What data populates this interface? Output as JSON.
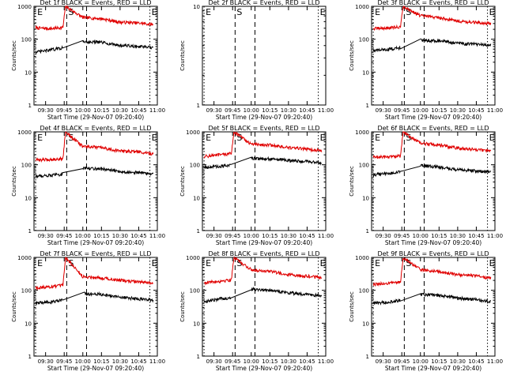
{
  "figure": {
    "shared": {
      "ylabel": "Counts/sec",
      "xlabel": "Start Time (29-Nov-07 09:20:40)",
      "x_tick_labels": [
        "09:30",
        "09:45",
        "10:00",
        "10:15",
        "10:30",
        "10:45",
        "11:00"
      ],
      "y_tick_labels": [
        "1",
        "10",
        "100",
        "1000"
      ],
      "marker_labels": {
        "E": "E",
        "S": "S"
      }
    },
    "colors": {
      "events": "#000000",
      "lld": "#e00000",
      "axes": "#000000",
      "background": "#ffffff"
    }
  },
  "chart_data": [
    {
      "type": "line",
      "title": "Det 1f BLACK = Events, RED = LLD",
      "x_range": [
        "09:20:40",
        "11:00"
      ],
      "y_scale": "log",
      "ylim": [
        1,
        1000
      ],
      "markers": [
        {
          "label": "E",
          "x": "09:22"
        },
        {
          "label": "S",
          "x": "09:47"
        },
        {
          "label": "E",
          "x": "10:54"
        }
      ],
      "x": [
        "09:22",
        "09:35",
        "09:44",
        "09:46",
        "10:00",
        "10:15",
        "10:30",
        "10:45",
        "10:57"
      ],
      "series": [
        {
          "name": "LLD",
          "color": "#e00000",
          "values": [
            220,
            210,
            230,
            1000,
            460,
            420,
            330,
            310,
            280
          ]
        },
        {
          "name": "Events",
          "color": "#000000",
          "values": [
            40,
            48,
            55,
            null,
            85,
            80,
            65,
            60,
            55
          ]
        }
      ]
    },
    {
      "type": "line",
      "title": "Det 2f BLACK = Events, RED = LLD",
      "x_range": [
        "09:20:40",
        "11:00"
      ],
      "y_scale": "log",
      "ylim": [
        1,
        10
      ],
      "markers": [
        {
          "label": "E",
          "x": "09:22"
        },
        {
          "label": "S",
          "x": "09:47"
        },
        {
          "label": "E",
          "x": "10:54"
        }
      ],
      "x": [],
      "series": []
    },
    {
      "type": "line",
      "title": "Det 3f BLACK = Events, RED = LLD",
      "x_range": [
        "09:20:40",
        "11:00"
      ],
      "y_scale": "log",
      "ylim": [
        1,
        1000
      ],
      "markers": [
        {
          "label": "E",
          "x": "09:22"
        },
        {
          "label": "S",
          "x": "09:47"
        },
        {
          "label": "E",
          "x": "10:54"
        }
      ],
      "x": [
        "09:22",
        "09:35",
        "09:44",
        "09:46",
        "10:00",
        "10:15",
        "10:30",
        "10:45",
        "10:57"
      ],
      "series": [
        {
          "name": "LLD",
          "color": "#e00000",
          "values": [
            210,
            220,
            240,
            1000,
            520,
            450,
            360,
            320,
            300
          ]
        },
        {
          "name": "Events",
          "color": "#000000",
          "values": [
            45,
            50,
            55,
            null,
            95,
            90,
            75,
            70,
            65
          ]
        }
      ]
    },
    {
      "type": "line",
      "title": "Det 4f BLACK = Events, RED = LLD",
      "x_range": [
        "09:20:40",
        "11:00"
      ],
      "y_scale": "log",
      "ylim": [
        1,
        1000
      ],
      "markers": [
        {
          "label": "E",
          "x": "09:22"
        },
        {
          "label": "S",
          "x": "09:47"
        },
        {
          "label": "E",
          "x": "10:54"
        }
      ],
      "x": [
        "09:22",
        "09:35",
        "09:44",
        "09:46",
        "10:00",
        "10:15",
        "10:30",
        "10:45",
        "10:57"
      ],
      "series": [
        {
          "name": "LLD",
          "color": "#e00000",
          "values": [
            140,
            145,
            155,
            1000,
            360,
            330,
            260,
            250,
            210
          ]
        },
        {
          "name": "Events",
          "color": "#000000",
          "values": [
            45,
            48,
            52,
            null,
            80,
            75,
            62,
            58,
            52
          ]
        }
      ]
    },
    {
      "type": "line",
      "title": "Det 5f BLACK = Events, RED = LLD",
      "x_range": [
        "09:20:40",
        "11:00"
      ],
      "y_scale": "log",
      "ylim": [
        1,
        1000
      ],
      "markers": [
        {
          "label": "E",
          "x": "09:22"
        },
        {
          "label": "S",
          "x": "09:47"
        },
        {
          "label": "E",
          "x": "10:54"
        }
      ],
      "x": [
        "09:22",
        "09:35",
        "09:44",
        "09:46",
        "10:00",
        "10:15",
        "10:30",
        "10:45",
        "10:57"
      ],
      "series": [
        {
          "name": "LLD",
          "color": "#e00000",
          "values": [
            180,
            200,
            220,
            1000,
            420,
            400,
            330,
            300,
            260
          ]
        },
        {
          "name": "Events",
          "color": "#000000",
          "values": [
            85,
            90,
            95,
            null,
            160,
            150,
            135,
            125,
            115
          ]
        }
      ]
    },
    {
      "type": "line",
      "title": "Det 6f BLACK = Events, RED = LLD",
      "x_range": [
        "09:20:40",
        "11:00"
      ],
      "y_scale": "log",
      "ylim": [
        1,
        1000
      ],
      "markers": [
        {
          "label": "E",
          "x": "09:22"
        },
        {
          "label": "S",
          "x": "09:47"
        },
        {
          "label": "E",
          "x": "10:54"
        }
      ],
      "x": [
        "09:22",
        "09:35",
        "09:44",
        "09:46",
        "10:00",
        "10:15",
        "10:30",
        "10:45",
        "10:57"
      ],
      "series": [
        {
          "name": "LLD",
          "color": "#e00000",
          "values": [
            170,
            175,
            185,
            1000,
            450,
            400,
            320,
            290,
            260
          ]
        },
        {
          "name": "Events",
          "color": "#000000",
          "values": [
            50,
            55,
            60,
            null,
            95,
            85,
            70,
            65,
            60
          ]
        }
      ]
    },
    {
      "type": "line",
      "title": "Det 7f BLACK = Events, RED = LLD",
      "x_range": [
        "09:20:40",
        "11:00"
      ],
      "y_scale": "log",
      "ylim": [
        1,
        1000
      ],
      "markers": [
        {
          "label": "E",
          "x": "09:22"
        },
        {
          "label": "S",
          "x": "09:47"
        },
        {
          "label": "E",
          "x": "10:54"
        }
      ],
      "x": [
        "09:22",
        "09:35",
        "09:44",
        "09:46",
        "10:00",
        "10:15",
        "10:30",
        "10:45",
        "10:57"
      ],
      "series": [
        {
          "name": "LLD",
          "color": "#e00000",
          "values": [
            120,
            130,
            140,
            1000,
            260,
            240,
            200,
            180,
            160
          ]
        },
        {
          "name": "Events",
          "color": "#000000",
          "values": [
            40,
            45,
            50,
            null,
            80,
            75,
            62,
            55,
            50
          ]
        }
      ]
    },
    {
      "type": "line",
      "title": "Det 8f BLACK = Events, RED = LLD",
      "x_range": [
        "09:20:40",
        "11:00"
      ],
      "y_scale": "log",
      "ylim": [
        1,
        1000
      ],
      "markers": [
        {
          "label": "E",
          "x": "09:22"
        },
        {
          "label": "S",
          "x": "09:47"
        },
        {
          "label": "E",
          "x": "10:54"
        }
      ],
      "x": [
        "09:22",
        "09:35",
        "09:44",
        "09:46",
        "10:00",
        "10:15",
        "10:30",
        "10:45",
        "10:57"
      ],
      "series": [
        {
          "name": "LLD",
          "color": "#e00000",
          "values": [
            170,
            190,
            210,
            1000,
            420,
            380,
            300,
            270,
            240
          ]
        },
        {
          "name": "Events",
          "color": "#000000",
          "values": [
            45,
            55,
            60,
            null,
            110,
            100,
            85,
            75,
            70
          ]
        }
      ]
    },
    {
      "type": "line",
      "title": "Det 9f BLACK = Events, RED = LLD",
      "x_range": [
        "09:20:40",
        "11:00"
      ],
      "y_scale": "log",
      "ylim": [
        1,
        1000
      ],
      "markers": [
        {
          "label": "E",
          "x": "09:22"
        },
        {
          "label": "S",
          "x": "09:47"
        },
        {
          "label": "E",
          "x": "10:54"
        }
      ],
      "x": [
        "09:22",
        "09:35",
        "09:44",
        "09:46",
        "10:00",
        "10:15",
        "10:30",
        "10:45",
        "10:57"
      ],
      "series": [
        {
          "name": "LLD",
          "color": "#e00000",
          "values": [
            150,
            165,
            180,
            1000,
            420,
            370,
            300,
            270,
            230
          ]
        },
        {
          "name": "Events",
          "color": "#000000",
          "values": [
            40,
            45,
            50,
            null,
            75,
            70,
            58,
            52,
            45
          ]
        }
      ]
    }
  ]
}
